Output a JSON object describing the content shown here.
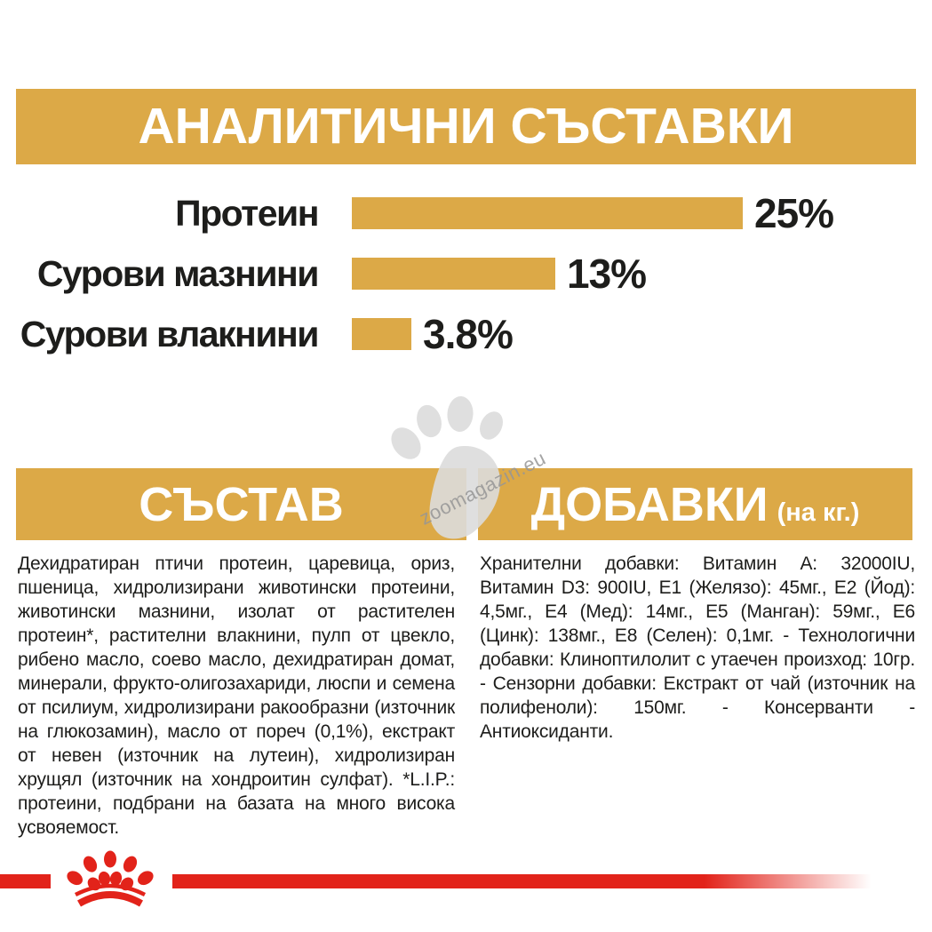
{
  "colors": {
    "gold": "#DCA947",
    "red": "#E2231A",
    "text": "#1D1D1B",
    "watermark_paw": "#DCDCDC",
    "watermark_text": "#969696"
  },
  "header": {
    "title": "АНАЛИТИЧНИ СЪСТАВКИ"
  },
  "chart_data": {
    "type": "bar",
    "orientation": "horizontal",
    "categories": [
      "Протеин",
      "Сурови мазнини",
      "Сурови влакнини"
    ],
    "values": [
      25,
      13,
      3.8
    ],
    "value_labels": [
      "25%",
      "13%",
      "3.8%"
    ],
    "xlim": [
      0,
      25
    ],
    "bar_color": "#DCA947",
    "grid": false,
    "legend": "none",
    "title": "АНАЛИТИЧНИ СЪСТАВКИ"
  },
  "watermark": {
    "icon": "paw-print",
    "text": "zoomagazin.eu"
  },
  "sections": {
    "composition": {
      "title": "СЪСТАВ",
      "body": "Дехидратиран птичи протеин, царевица, ориз, пшеница, хидролизирани животински протеини, животински мазнини, изолат от растителен протеин*, растителни влакнини, пулп от цвекло, рибено масло, соево масло, дехидратиран домат, минерали, фрукто-олигозахариди, люспи и семена от псилиум, хидролизирани ракообразни (източник на глюкозамин), масло от пореч (0,1%), екстракт от невен (източник на лутеин), хидролизиран хрущял (източник на хондроитин сулфат). *L.I.P.: протеини, подбрани на базата на много висока усвояемост."
    },
    "additives": {
      "title": "ДОБАВКИ",
      "title_suffix": "(на кг.)",
      "body": "Хранителни добавки: Витамин A: 32000IU, Витамин D3: 900IU, E1 (Желязо): 45мг., E2 (Йод): 4,5мг., E4 (Мед): 14мг., E5 (Манган): 59мг., E6 (Цинк): 138мг., E8 (Селен): 0,1мг. - Технологични добавки: Клиноптилолит с утаечен произход: 10гр. - Сензорни добавки: Екстракт от чай (източник на полифеноли): 150мг. - Консерванти - Антиоксиданти."
    }
  },
  "footer": {
    "brand_icon": "royal-canin-crown"
  }
}
